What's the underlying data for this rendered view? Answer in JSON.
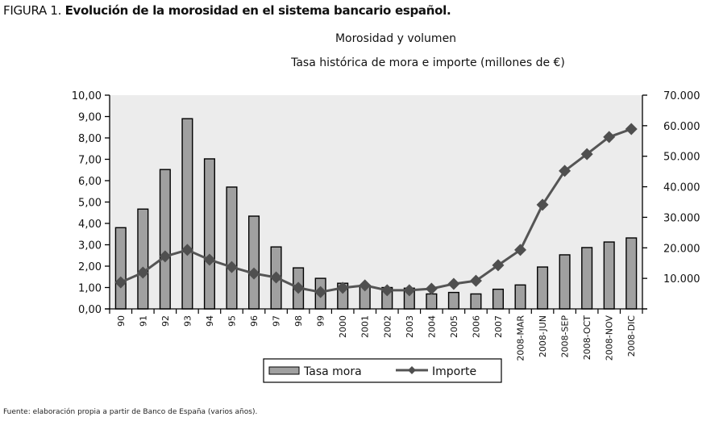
{
  "figure": {
    "label": "FIGURA 1.",
    "title": "Evolución de la morosidad en el sistema bancario español.",
    "subtitle": "Morosidad y volumen",
    "subtitle2": "Tasa histórica de mora e importe (millones de €)",
    "source": "Fuente: elaboración propia a partir de Banco de España (varios años)."
  },
  "chart_data": {
    "type": "bar+line",
    "title": "Morosidad y volumen",
    "subtitle": "Tasa histórica de mora e importe (millones de €)",
    "categories": [
      "90",
      "91",
      "92",
      "93",
      "94",
      "95",
      "96",
      "97",
      "98",
      "99",
      "2000",
      "2001",
      "2002",
      "2003",
      "2004",
      "2005",
      "2006",
      "2007",
      "2008-MAR",
      "2008-JUN",
      "2008-SEP",
      "2008-OCT",
      "2008-NOV",
      "2008-DIC"
    ],
    "series": [
      {
        "name": "Tasa mora",
        "type": "bar",
        "axis": "left",
        "color": "#a0a0a0",
        "values": [
          3.8,
          4.67,
          6.52,
          8.9,
          7.02,
          5.7,
          4.34,
          2.9,
          1.92,
          1.43,
          1.2,
          1.1,
          1.0,
          0.97,
          0.7,
          0.77,
          0.7,
          0.92,
          1.12,
          1.96,
          2.53,
          2.87,
          3.13,
          3.32
        ]
      },
      {
        "name": "Importe",
        "type": "line",
        "axis": "right",
        "color": "#555555",
        "marker": "diamond",
        "values": [
          8700,
          11900,
          17200,
          19300,
          16100,
          13700,
          11600,
          10300,
          6900,
          5500,
          6900,
          7700,
          6100,
          6100,
          6600,
          8200,
          9200,
          14300,
          19300,
          34100,
          45200,
          50700,
          56300,
          58900
        ]
      }
    ],
    "y_left": {
      "range": [
        0,
        10
      ],
      "ticks": [
        "0,00",
        "1,00",
        "2,00",
        "3,00",
        "4,00",
        "5,00",
        "6,00",
        "7,00",
        "8,00",
        "9,00",
        "10,00"
      ]
    },
    "y_right": {
      "range": [
        0,
        70000
      ],
      "ticks": [
        "10.000",
        "20.000",
        "30.000",
        "40.000",
        "50.000",
        "60.000",
        "70.000"
      ]
    },
    "grid": false,
    "plot_background": "#ececec",
    "legend": {
      "position": "bottom-center",
      "entries": [
        "Tasa mora",
        "Importe"
      ]
    }
  }
}
